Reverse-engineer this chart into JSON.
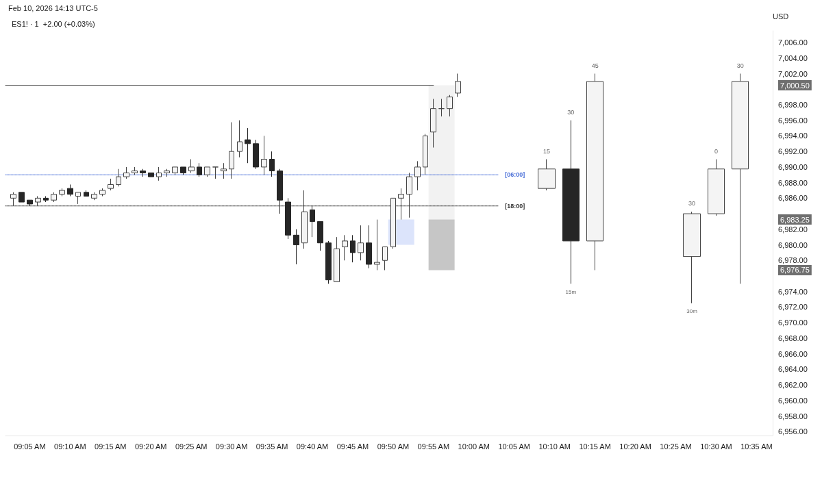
{
  "chart_data": {
    "type": "candlestick",
    "title": "ES1! · 1  +2.00 (+0.03%)",
    "ylabel": "USD",
    "annotations": [
      "Feb 10, 2026 14:13 UTC-5",
      {
        "text": "15m",
        "x": "2026-02-10T10:12",
        "y": 6975
      },
      {
        "text": "30m",
        "x": "2026-02-10T10:27",
        "y": 6972.5
      }
    ],
    "series": [
      {
        "type": "bar",
        "x": [
          "2026-02-10T09:51"
        ],
        "base": [
          6980
        ],
        "values": [
          3.25
        ],
        "colors": [
          "#dce4fb"
        ]
      },
      {
        "type": "bar",
        "x": [
          "2026-02-10T09:56"
        ],
        "base": [
          6983.25
        ],
        "values": [
          17.25
        ],
        "colors": [
          "#f2f2f2"
        ]
      },
      {
        "type": "bar",
        "x": [
          "2026-02-10T09:56"
        ],
        "base": [
          6976.75
        ],
        "values": [
          6.5
        ],
        "colors": [
          "#c6c6c6"
        ]
      },
      {
        "type": "line",
        "x": [
          "2026-02-10T09:02",
          "2026-02-10T09:55"
        ],
        "values": [
          7000.5,
          7000.5
        ],
        "color": "#555555",
        "line_style": "solid"
      },
      {
        "type": "line",
        "name": "[06:00]",
        "x": [
          "2026-02-10T09:02",
          "2026-02-10T10:03"
        ],
        "values": [
          6989,
          6989
        ],
        "color": "#4a6fd8",
        "line_style": "dotted"
      },
      {
        "type": "line",
        "name": "[18:00]",
        "x": [
          "2026-02-10T09:02",
          "2026-02-10T10:03"
        ],
        "values": [
          6985,
          6985
        ],
        "color": "#333333",
        "line_style": "dotted"
      },
      {
        "x": [
          "2026-02-10T09:03",
          "2026-02-10T09:04",
          "2026-02-10T09:05",
          "2026-02-10T09:06",
          "2026-02-10T09:07",
          "2026-02-10T09:08",
          "2026-02-10T09:09",
          "2026-02-10T09:10",
          "2026-02-10T09:11",
          "2026-02-10T09:12",
          "2026-02-10T09:13",
          "2026-02-10T09:14",
          "2026-02-10T09:15",
          "2026-02-10T09:16",
          "2026-02-10T09:17",
          "2026-02-10T09:18",
          "2026-02-10T09:19",
          "2026-02-10T09:20",
          "2026-02-10T09:21",
          "2026-02-10T09:22",
          "2026-02-10T09:23",
          "2026-02-10T09:24",
          "2026-02-10T09:25",
          "2026-02-10T09:26",
          "2026-02-10T09:27",
          "2026-02-10T09:28",
          "2026-02-10T09:29",
          "2026-02-10T09:30",
          "2026-02-10T09:31",
          "2026-02-10T09:32",
          "2026-02-10T09:33",
          "2026-02-10T09:34",
          "2026-02-10T09:35",
          "2026-02-10T09:36",
          "2026-02-10T09:37",
          "2026-02-10T09:38",
          "2026-02-10T09:39",
          "2026-02-10T09:40",
          "2026-02-10T09:41",
          "2026-02-10T09:42",
          "2026-02-10T09:43",
          "2026-02-10T09:44",
          "2026-02-10T09:45",
          "2026-02-10T09:46",
          "2026-02-10T09:47",
          "2026-02-10T09:48",
          "2026-02-10T09:49",
          "2026-02-10T09:50",
          "2026-02-10T09:51",
          "2026-02-10T09:52",
          "2026-02-10T09:53",
          "2026-02-10T09:54",
          "2026-02-10T09:55",
          "2026-02-10T09:56",
          "2026-02-10T09:57",
          "2026-02-10T09:58"
        ],
        "ohlc": [
          [
            6986,
            6986.75,
            6985,
            6986.5
          ],
          [
            6986.75,
            6986.75,
            6985.5,
            6985.5
          ],
          [
            6985.75,
            6985.75,
            6985,
            6985.25
          ],
          [
            6985.5,
            6986.25,
            6985,
            6986
          ],
          [
            6986,
            6986.25,
            6985.5,
            6985.75
          ],
          [
            6985.75,
            6986.75,
            6985.5,
            6986.5
          ],
          [
            6986.5,
            6987.25,
            6986.25,
            6987
          ],
          [
            6987.25,
            6987.75,
            6986.25,
            6986.5
          ],
          [
            6986.25,
            6986.75,
            6985.25,
            6986.75
          ],
          [
            6986.75,
            6987,
            6986.25,
            6986.25
          ],
          [
            6986,
            6986.75,
            6985.75,
            6986.5
          ],
          [
            6986.5,
            6987.25,
            6986.25,
            6987
          ],
          [
            6987.25,
            6988.5,
            6987,
            6987.75
          ],
          [
            6987.75,
            6989.75,
            6987.5,
            6988.75
          ],
          [
            6988.75,
            6990,
            6988.5,
            6989.25
          ],
          [
            6989.25,
            6990,
            6989,
            6989.5
          ],
          [
            6989.5,
            6989.75,
            6988.75,
            6989.25
          ],
          [
            6989.25,
            6989.25,
            6988.75,
            6988.75
          ],
          [
            6988.75,
            6990,
            6988.25,
            6989.25
          ],
          [
            6989.25,
            6989.75,
            6988.75,
            6989.5
          ],
          [
            6989.25,
            6990,
            6989,
            6990
          ],
          [
            6990,
            6990,
            6989,
            6989.25
          ],
          [
            6989.5,
            6991,
            6989.25,
            6990
          ],
          [
            6990,
            6990.5,
            6988.75,
            6989
          ],
          [
            6989,
            6990,
            6988.75,
            6990
          ],
          [
            6990,
            6990,
            6988.5,
            6990
          ],
          [
            6989.5,
            6990.5,
            6988.5,
            6989.75
          ],
          [
            6989.75,
            6995.75,
            6988.5,
            6992
          ],
          [
            6992,
            6996,
            6991.25,
            6993.25
          ],
          [
            6993.5,
            6995,
            6990.5,
            6993
          ],
          [
            6993,
            6993.5,
            6989.75,
            6990
          ],
          [
            6990,
            6994,
            6989,
            6991
          ],
          [
            6991,
            6992,
            6988.75,
            6989.5
          ],
          [
            6989.5,
            6989.75,
            6984,
            6985.75
          ],
          [
            6985.5,
            6986,
            6980.75,
            6981.25
          ],
          [
            6981.25,
            6982,
            6977.5,
            6980
          ],
          [
            6980.25,
            6987,
            6979.5,
            6984.25
          ],
          [
            6984.5,
            6985,
            6981,
            6983
          ],
          [
            6983,
            6983,
            6979.25,
            6980.25
          ],
          [
            6980.25,
            6980.5,
            6975,
            6975.5
          ],
          [
            6975.25,
            6981,
            6975.25,
            6979.5
          ],
          [
            6979.75,
            6981.25,
            6978,
            6980.5
          ],
          [
            6980.5,
            6981.25,
            6977.75,
            6979
          ],
          [
            6979,
            6982.5,
            6978,
            6980.25
          ],
          [
            6980.25,
            6982.5,
            6977,
            6977.5
          ],
          [
            6977.5,
            6983.25,
            6976.75,
            6977.75
          ],
          [
            6978,
            6979.75,
            6976.75,
            6979.75
          ],
          [
            6979.75,
            6986,
            6979.5,
            6986
          ],
          [
            6986,
            6987.25,
            6983.25,
            6986.5
          ],
          [
            6986.5,
            6989.25,
            6983.5,
            6988.75
          ],
          [
            6988.75,
            6990.75,
            6987,
            6990
          ],
          [
            6990,
            6994.25,
            6989,
            6994
          ],
          [
            6994.5,
            6998.75,
            6992.5,
            6997.5
          ],
          [
            6997.5,
            6998.75,
            6996.5,
            6997.5
          ],
          [
            6997.5,
            6999.25,
            6996.5,
            6999
          ],
          [
            6999.5,
            7002,
            6999,
            7001
          ]
        ]
      },
      {
        "x": [
          "2026-02-10T10:09",
          "2026-02-10T10:12",
          "2026-02-10T10:15",
          "2026-02-10T10:27",
          "2026-02-10T10:30",
          "2026-02-10T10:33"
        ],
        "ohlc": [
          [
            6987.25,
            6991,
            6987,
            6989.75
          ],
          [
            6989.75,
            6996,
            6975,
            6980.5
          ],
          [
            6980.5,
            7002,
            6976.75,
            7001
          ],
          [
            6978.5,
            6984.25,
            6972.5,
            6984
          ],
          [
            6984,
            6991,
            6983.75,
            6989.75
          ],
          [
            6989.75,
            7002,
            6975,
            7001
          ]
        ],
        "value_labels": [
          "15",
          "30",
          "45",
          "30",
          "0",
          "30"
        ]
      }
    ],
    "xlim": [
      "2026-02-10T09:02",
      "2026-02-10T10:37"
    ],
    "xticks": [
      {
        "value": "2026-02-10T09:05",
        "label": "09:05 AM"
      },
      {
        "value": "2026-02-10T09:10",
        "label": "09:10 AM"
      },
      {
        "value": "2026-02-10T09:15",
        "label": "09:15 AM"
      },
      {
        "value": "2026-02-10T09:20",
        "label": "09:20 AM"
      },
      {
        "value": "2026-02-10T09:25",
        "label": "09:25 AM"
      },
      {
        "value": "2026-02-10T09:30",
        "label": "09:30 AM"
      },
      {
        "value": "2026-02-10T09:35",
        "label": "09:35 AM"
      },
      {
        "value": "2026-02-10T09:40",
        "label": "09:40 AM"
      },
      {
        "value": "2026-02-10T09:45",
        "label": "09:45 AM"
      },
      {
        "value": "2026-02-10T09:50",
        "label": "09:50 AM"
      },
      {
        "value": "2026-02-10T09:55",
        "label": "09:55 AM"
      },
      {
        "value": "2026-02-10T10:00",
        "label": "10:00 AM"
      },
      {
        "value": "2026-02-10T10:05",
        "label": "10:05 AM"
      },
      {
        "value": "2026-02-10T10:10",
        "label": "10:10 AM"
      },
      {
        "value": "2026-02-10T10:15",
        "label": "10:15 AM"
      },
      {
        "value": "2026-02-10T10:20",
        "label": "10:20 AM"
      },
      {
        "value": "2026-02-10T10:25",
        "label": "10:25 AM"
      },
      {
        "value": "2026-02-10T10:30",
        "label": "10:30 AM"
      },
      {
        "value": "2026-02-10T10:35",
        "label": "10:35 AM"
      }
    ],
    "ylim": [
      6955.5,
      7007.5
    ],
    "yticks": [
      {
        "value": 6956,
        "label": "6,956.00"
      },
      {
        "value": 6958,
        "label": "6,958.00"
      },
      {
        "value": 6960,
        "label": "6,960.00"
      },
      {
        "value": 6962,
        "label": "6,962.00"
      },
      {
        "value": 6964,
        "label": "6,964.00"
      },
      {
        "value": 6966,
        "label": "6,966.00"
      },
      {
        "value": 6968,
        "label": "6,968.00"
      },
      {
        "value": 6970,
        "label": "6,970.00"
      },
      {
        "value": 6972,
        "label": "6,972.00"
      },
      {
        "value": 6974,
        "label": "6,974.00"
      },
      {
        "value": 6976.75,
        "label": "6,976.75"
      },
      {
        "value": 6978,
        "label": "6,978.00"
      },
      {
        "value": 6980,
        "label": "6,980.00"
      },
      {
        "value": 6982,
        "label": "6,982.00"
      },
      {
        "value": 6983.25,
        "label": "6,983.25"
      },
      {
        "value": 6986,
        "label": "6,986.00"
      },
      {
        "value": 6988,
        "label": "6,988.00"
      },
      {
        "value": 6990,
        "label": "6,990.00"
      },
      {
        "value": 6992,
        "label": "6,992.00"
      },
      {
        "value": 6994,
        "label": "6,994.00"
      },
      {
        "value": 6996,
        "label": "6,996.00"
      },
      {
        "value": 6998,
        "label": "6,998.00"
      },
      {
        "value": 7000.5,
        "label": "7,000.50"
      },
      {
        "value": 7002,
        "label": "7,002.00"
      },
      {
        "value": 7004,
        "label": "7,004.00"
      },
      {
        "value": 7006,
        "label": "7,006.00"
      }
    ]
  }
}
